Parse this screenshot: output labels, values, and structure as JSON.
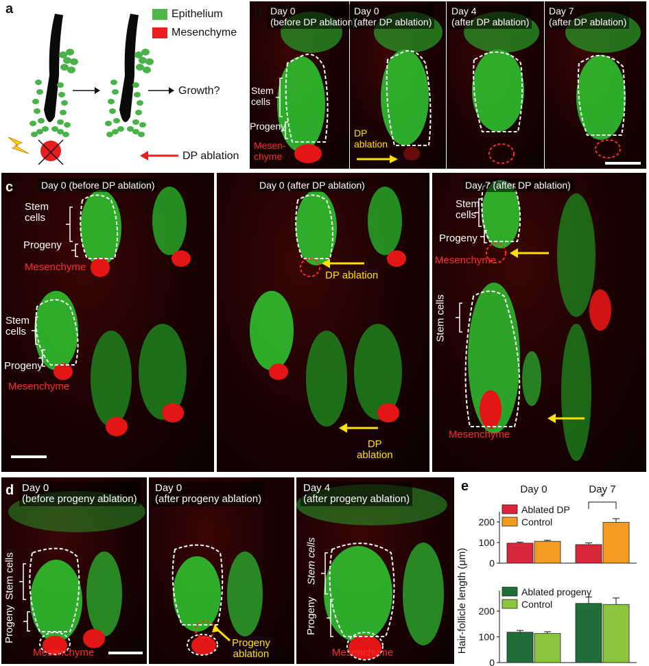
{
  "panels": {
    "a": {
      "letter": "a",
      "legend": [
        {
          "label": "Epithelium",
          "color": "#4cb84c"
        },
        {
          "label": "Mesenchyme",
          "color": "#e81e1e"
        }
      ],
      "growth_label": "Growth?",
      "ablation_label": "DP ablation"
    },
    "b": {
      "letter": "b",
      "captions": [
        "Day 0\n(before DP ablation)",
        "Day 0\n(after DP ablation)",
        "Day 4\n(after DP ablation)",
        "Day 7\n(after DP ablation)"
      ],
      "stem_label": "Stem\ncells",
      "progeny_label": "Progeny",
      "mesenchyme_label": "Mesen-\nchyme",
      "ablation_label": "DP\nablation"
    },
    "c": {
      "letter": "c",
      "captions": [
        "Day 0 (before DP ablation)",
        "Day 0 (after DP ablation)",
        "Day 7 (after DP ablation)"
      ],
      "stem_label": "Stem\ncells",
      "stem_label_single": "Stem cells",
      "progeny_label": "Progeny",
      "mesenchyme_label": "Mesenchyme",
      "ablation_label": "DP ablation",
      "ablation_label_split": "DP\nablation"
    },
    "d": {
      "letter": "d",
      "captions": [
        "Day 0\n(before progeny ablation)",
        "Day 0\n(after progeny ablation)",
        "Day 4\n(after progeny ablation)"
      ],
      "stem_label": "Stem cells",
      "progeny_label": "Progeny",
      "mesenchyme_label": "Mesenchyme",
      "ablation_label": "Progeny\nablation"
    },
    "e": {
      "letter": "e"
    }
  },
  "chart_data": [
    {
      "type": "bar",
      "categories": [
        "Day 0",
        "Day 7"
      ],
      "ylabel": "Hair-follicle length (μm)",
      "ylim": [
        0,
        250
      ],
      "yticks": [
        0,
        100,
        200
      ],
      "significance": "*",
      "series": [
        {
          "name": "Ablated DP",
          "color": "#d8273a",
          "values": [
            97,
            90
          ],
          "errors": [
            5,
            8
          ]
        },
        {
          "name": "Control",
          "color": "#f39a1f",
          "values": [
            106,
            198
          ],
          "errors": [
            5,
            18
          ]
        }
      ]
    },
    {
      "type": "bar",
      "categories": [
        "Day 0",
        "Day 7"
      ],
      "ylabel": "Hair-follicle length (μm)",
      "ylim": [
        0,
        280
      ],
      "yticks": [
        0,
        100,
        200
      ],
      "series": [
        {
          "name": "Ablated progeny",
          "color": "#1f6e3a",
          "values": [
            118,
            230
          ],
          "errors": [
            7,
            25
          ]
        },
        {
          "name": "Control",
          "color": "#8cc63f",
          "values": [
            113,
            226
          ],
          "errors": [
            7,
            25
          ]
        }
      ]
    }
  ]
}
